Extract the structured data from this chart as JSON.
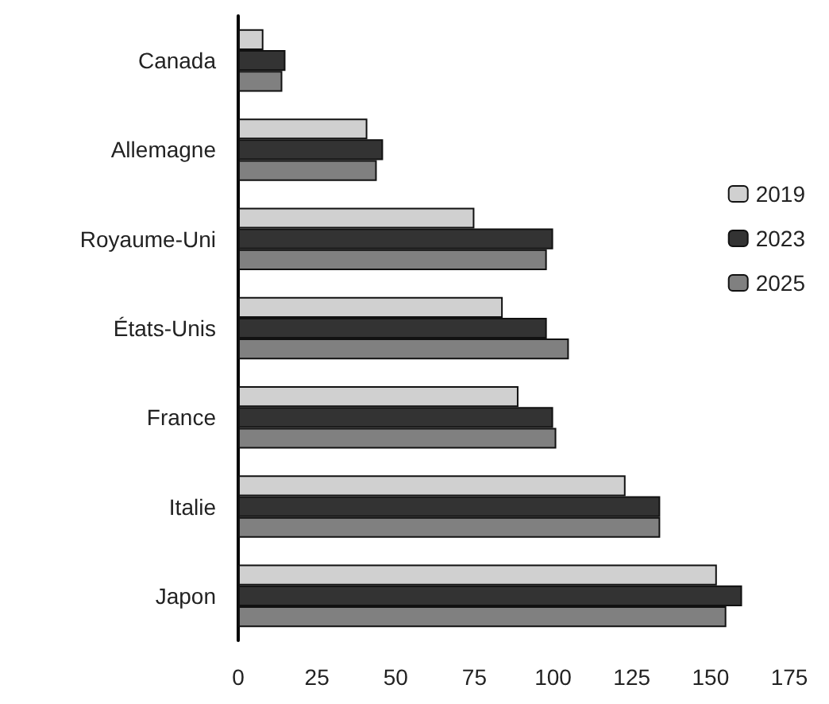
{
  "chart_data": {
    "type": "bar",
    "orientation": "horizontal",
    "categories": [
      "Canada",
      "Allemagne",
      "Royaume-Uni",
      "États-Unis",
      "France",
      "Italie",
      "Japon"
    ],
    "series": [
      {
        "name": "2019",
        "color": "#d0d0d0",
        "values": [
          8,
          41,
          75,
          84,
          89,
          123,
          152
        ]
      },
      {
        "name": "2023",
        "color": "#333333",
        "values": [
          15,
          46,
          100,
          98,
          100,
          134,
          160
        ]
      },
      {
        "name": "2025",
        "color": "#808080",
        "values": [
          14,
          44,
          98,
          105,
          101,
          134,
          155
        ]
      }
    ],
    "xlim": [
      0,
      175
    ],
    "xticks": [
      0,
      25,
      50,
      75,
      100,
      125,
      150,
      175
    ],
    "grid": false,
    "legend": "right"
  }
}
